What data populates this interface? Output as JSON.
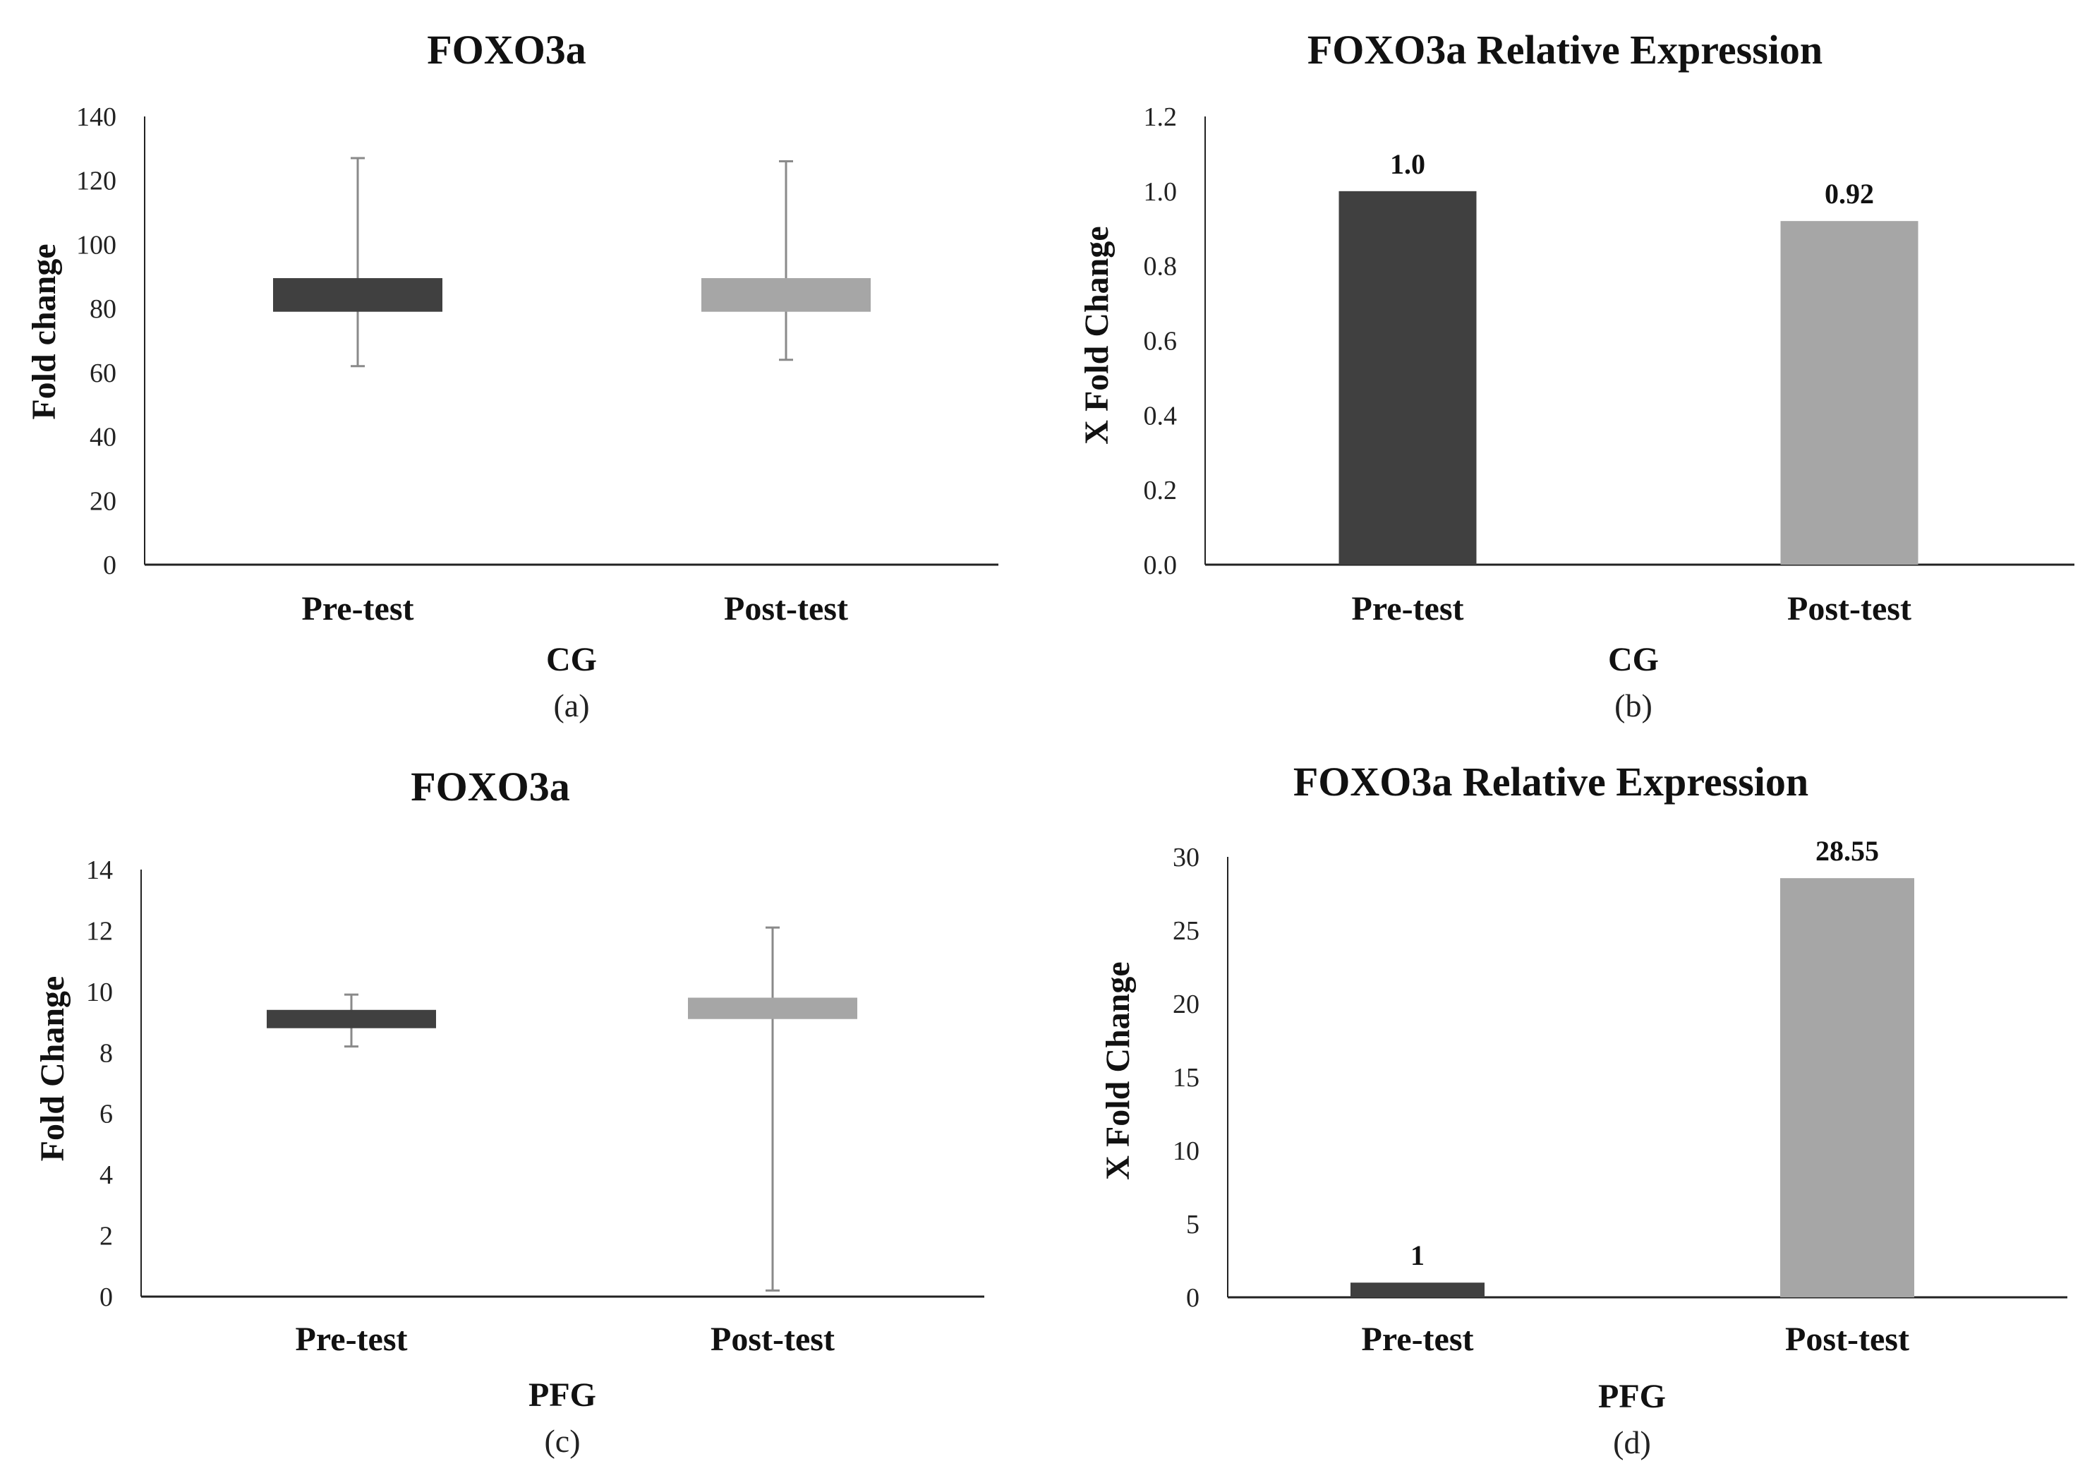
{
  "chart_data": [
    {
      "panel": "(a)",
      "type": "box",
      "title": "FOXO3a",
      "ylabel": "Fold change",
      "xlabel": "CG",
      "ylim": [
        0,
        140
      ],
      "yticks": [
        "0",
        "20",
        "40",
        "60",
        "80",
        "100",
        "120",
        "140"
      ],
      "categories": [
        "Pre-test",
        "Post-test"
      ],
      "boxes": [
        {
          "name": "Pre-test",
          "min": 62,
          "q1": 79,
          "q3": 89.5,
          "max": 127,
          "color": "#404040"
        },
        {
          "name": "Post-test",
          "min": 64,
          "q1": 79,
          "q3": 89.5,
          "max": 126,
          "color": "#a6a6a6"
        }
      ]
    },
    {
      "panel": "(b)",
      "type": "bar",
      "title": "FOXO3a Relative Expression",
      "ylabel": "X Fold Change",
      "xlabel": "CG",
      "ylim": [
        0,
        1.2
      ],
      "yticks": [
        "0.0",
        "0.2",
        "0.4",
        "0.6",
        "0.8",
        "1.0",
        "1.2"
      ],
      "categories": [
        "Pre-test",
        "Post-test"
      ],
      "values": [
        1.0,
        0.92
      ],
      "data_labels": [
        "1.0",
        "0.92"
      ],
      "colors": [
        "#404040",
        "#a6a6a6"
      ]
    },
    {
      "panel": "(c)",
      "type": "box",
      "title": "FOXO3a",
      "ylabel": "Fold Change",
      "xlabel": "PFG",
      "ylim": [
        0,
        14
      ],
      "yticks": [
        "0",
        "2",
        "4",
        "6",
        "8",
        "10",
        "12",
        "14"
      ],
      "categories": [
        "Pre-test",
        "Post-test"
      ],
      "boxes": [
        {
          "name": "Pre-test",
          "min": 8.2,
          "q1": 8.8,
          "q3": 9.4,
          "max": 9.9,
          "color": "#404040"
        },
        {
          "name": "Post-test",
          "min": 0.2,
          "q1": 9.1,
          "q3": 9.8,
          "max": 12.1,
          "color": "#a6a6a6"
        }
      ]
    },
    {
      "panel": "(d)",
      "type": "bar",
      "title": "FOXO3a Relative Expression",
      "ylabel": "X Fold Change",
      "xlabel": "PFG",
      "ylim": [
        0,
        30
      ],
      "yticks": [
        "0",
        "5",
        "10",
        "15",
        "20",
        "25",
        "30"
      ],
      "categories": [
        "Pre-test",
        "Post-test"
      ],
      "values": [
        1,
        28.55
      ],
      "data_labels": [
        "1",
        "28.55"
      ],
      "colors": [
        "#404040",
        "#a6a6a6"
      ]
    }
  ]
}
